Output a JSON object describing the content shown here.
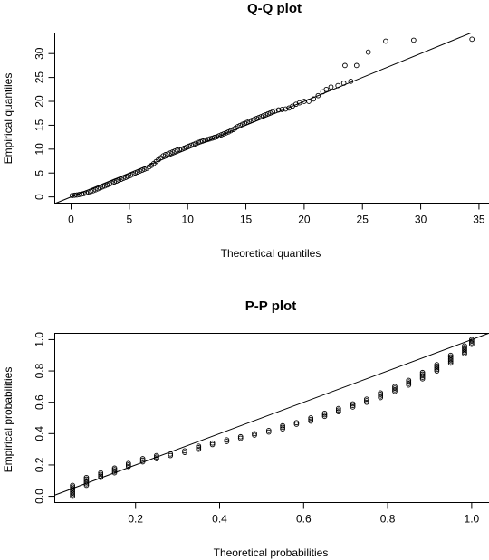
{
  "chart_data": [
    {
      "type": "scatter",
      "title": "Q-Q plot",
      "xlabel": "Theoretical quantiles",
      "ylabel": "Empirical quantiles",
      "xlim": [
        -1.4,
        35.9
      ],
      "ylim": [
        -1.3,
        34.3
      ],
      "xticks": [
        0,
        5,
        10,
        15,
        20,
        25,
        30,
        35
      ],
      "yticks": [
        0,
        5,
        10,
        15,
        20,
        25,
        30
      ],
      "reference_line": "y = x",
      "marker": "open-circle",
      "series": [
        {
          "points": [
            [
              0.1,
              0.3
            ],
            [
              0.3,
              0.35
            ],
            [
              0.5,
              0.4
            ],
            [
              0.7,
              0.5
            ],
            [
              0.9,
              0.6
            ],
            [
              1.1,
              0.7
            ],
            [
              1.3,
              0.85
            ],
            [
              1.5,
              1.0
            ],
            [
              1.7,
              1.15
            ],
            [
              1.9,
              1.3
            ],
            [
              2.1,
              1.5
            ],
            [
              2.3,
              1.7
            ],
            [
              2.5,
              1.9
            ],
            [
              2.7,
              2.1
            ],
            [
              2.9,
              2.3
            ],
            [
              3.1,
              2.5
            ],
            [
              3.3,
              2.7
            ],
            [
              3.5,
              2.9
            ],
            [
              3.7,
              3.1
            ],
            [
              3.9,
              3.3
            ],
            [
              4.1,
              3.5
            ],
            [
              4.3,
              3.7
            ],
            [
              4.5,
              3.9
            ],
            [
              4.7,
              4.1
            ],
            [
              4.9,
              4.3
            ],
            [
              5.1,
              4.5
            ],
            [
              5.3,
              4.75
            ],
            [
              5.5,
              5.0
            ],
            [
              5.7,
              5.2
            ],
            [
              5.9,
              5.4
            ],
            [
              6.1,
              5.6
            ],
            [
              6.3,
              5.8
            ],
            [
              6.5,
              6.0
            ],
            [
              6.7,
              6.3
            ],
            [
              6.9,
              6.6
            ],
            [
              7.1,
              7.0
            ],
            [
              7.3,
              7.4
            ],
            [
              7.5,
              7.8
            ],
            [
              7.7,
              8.2
            ],
            [
              7.9,
              8.6
            ],
            [
              8.1,
              8.85
            ],
            [
              8.3,
              9.0
            ],
            [
              8.5,
              9.2
            ],
            [
              8.7,
              9.4
            ],
            [
              8.9,
              9.6
            ],
            [
              9.1,
              9.8
            ],
            [
              9.3,
              9.9
            ],
            [
              9.5,
              10.0
            ],
            [
              9.7,
              10.2
            ],
            [
              9.9,
              10.4
            ],
            [
              10.1,
              10.6
            ],
            [
              10.3,
              10.8
            ],
            [
              10.5,
              11.0
            ],
            [
              10.7,
              11.2
            ],
            [
              10.9,
              11.4
            ],
            [
              11.1,
              11.55
            ],
            [
              11.3,
              11.7
            ],
            [
              11.5,
              11.85
            ],
            [
              11.7,
              12.0
            ],
            [
              11.9,
              12.15
            ],
            [
              12.1,
              12.3
            ],
            [
              12.3,
              12.45
            ],
            [
              12.5,
              12.6
            ],
            [
              12.7,
              12.8
            ],
            [
              12.9,
              13.0
            ],
            [
              13.1,
              13.2
            ],
            [
              13.3,
              13.4
            ],
            [
              13.5,
              13.6
            ],
            [
              13.7,
              13.85
            ],
            [
              13.9,
              14.1
            ],
            [
              14.1,
              14.4
            ],
            [
              14.3,
              14.7
            ],
            [
              14.5,
              14.95
            ],
            [
              14.7,
              15.2
            ],
            [
              14.9,
              15.4
            ],
            [
              15.1,
              15.6
            ],
            [
              15.3,
              15.8
            ],
            [
              15.5,
              16.0
            ],
            [
              15.7,
              16.2
            ],
            [
              15.9,
              16.4
            ],
            [
              16.1,
              16.6
            ],
            [
              16.3,
              16.8
            ],
            [
              16.5,
              17.0
            ],
            [
              16.7,
              17.2
            ],
            [
              16.9,
              17.4
            ],
            [
              17.1,
              17.6
            ],
            [
              17.3,
              17.8
            ],
            [
              17.5,
              18.0
            ],
            [
              17.8,
              18.2
            ],
            [
              18.1,
              18.3
            ],
            [
              18.4,
              18.4
            ],
            [
              18.7,
              18.6
            ],
            [
              19.0,
              19.0
            ],
            [
              19.3,
              19.4
            ],
            [
              19.6,
              19.7
            ],
            [
              20.0,
              20.0
            ],
            [
              20.4,
              20.0
            ],
            [
              20.8,
              20.5
            ],
            [
              21.2,
              21.2
            ],
            [
              21.6,
              22.0
            ],
            [
              21.9,
              22.5
            ],
            [
              22.3,
              23.0
            ],
            [
              22.9,
              23.3
            ],
            [
              23.4,
              23.8
            ],
            [
              24.0,
              24.2
            ],
            [
              23.5,
              27.5
            ],
            [
              24.5,
              27.5
            ],
            [
              25.5,
              30.3
            ],
            [
              27.0,
              32.6
            ],
            [
              29.4,
              32.8
            ],
            [
              34.4,
              33.0
            ]
          ]
        }
      ]
    },
    {
      "type": "scatter",
      "title": "P-P plot",
      "xlabel": "Theoretical probabilities",
      "ylabel": "Empirical probabilities",
      "xlim": [
        0.0077,
        1.0423
      ],
      "ylim": [
        -0.04,
        1.04
      ],
      "xticks": [
        0.2,
        0.4,
        0.6,
        0.8,
        1.0
      ],
      "yticks": [
        0.0,
        0.2,
        0.4,
        0.6,
        0.8,
        1.0
      ],
      "reference_line": "y = x",
      "marker": "open-circle",
      "series": [
        {
          "points": [
            [
              0.05,
              0.0
            ],
            [
              0.05,
              0.01
            ],
            [
              0.05,
              0.02
            ],
            [
              0.05,
              0.03
            ],
            [
              0.05,
              0.04
            ],
            [
              0.05,
              0.05
            ],
            [
              0.05,
              0.06
            ],
            [
              0.05,
              0.07
            ],
            [
              0.083,
              0.07
            ],
            [
              0.083,
              0.08
            ],
            [
              0.083,
              0.09
            ],
            [
              0.083,
              0.1
            ],
            [
              0.083,
              0.11
            ],
            [
              0.083,
              0.12
            ],
            [
              0.117,
              0.12
            ],
            [
              0.117,
              0.13
            ],
            [
              0.117,
              0.14
            ],
            [
              0.117,
              0.15
            ],
            [
              0.15,
              0.15
            ],
            [
              0.15,
              0.16
            ],
            [
              0.15,
              0.17
            ],
            [
              0.15,
              0.18
            ],
            [
              0.183,
              0.19
            ],
            [
              0.183,
              0.2
            ],
            [
              0.183,
              0.21
            ],
            [
              0.217,
              0.22
            ],
            [
              0.217,
              0.23
            ],
            [
              0.217,
              0.24
            ],
            [
              0.25,
              0.24
            ],
            [
              0.25,
              0.25
            ],
            [
              0.25,
              0.26
            ],
            [
              0.283,
              0.26
            ],
            [
              0.283,
              0.27
            ],
            [
              0.317,
              0.28
            ],
            [
              0.317,
              0.29
            ],
            [
              0.35,
              0.3
            ],
            [
              0.35,
              0.31
            ],
            [
              0.35,
              0.32
            ],
            [
              0.383,
              0.33
            ],
            [
              0.383,
              0.34
            ],
            [
              0.417,
              0.35
            ],
            [
              0.417,
              0.36
            ],
            [
              0.45,
              0.37
            ],
            [
              0.45,
              0.38
            ],
            [
              0.483,
              0.39
            ],
            [
              0.483,
              0.4
            ],
            [
              0.517,
              0.41
            ],
            [
              0.517,
              0.42
            ],
            [
              0.55,
              0.43
            ],
            [
              0.55,
              0.44
            ],
            [
              0.55,
              0.45
            ],
            [
              0.583,
              0.46
            ],
            [
              0.583,
              0.47
            ],
            [
              0.617,
              0.48
            ],
            [
              0.617,
              0.49
            ],
            [
              0.617,
              0.5
            ],
            [
              0.65,
              0.51
            ],
            [
              0.65,
              0.52
            ],
            [
              0.65,
              0.53
            ],
            [
              0.683,
              0.54
            ],
            [
              0.683,
              0.55
            ],
            [
              0.683,
              0.56
            ],
            [
              0.717,
              0.57
            ],
            [
              0.717,
              0.58
            ],
            [
              0.717,
              0.59
            ],
            [
              0.75,
              0.6
            ],
            [
              0.75,
              0.61
            ],
            [
              0.75,
              0.62
            ],
            [
              0.783,
              0.63
            ],
            [
              0.783,
              0.64
            ],
            [
              0.783,
              0.65
            ],
            [
              0.783,
              0.66
            ],
            [
              0.817,
              0.67
            ],
            [
              0.817,
              0.68
            ],
            [
              0.817,
              0.69
            ],
            [
              0.817,
              0.7
            ],
            [
              0.85,
              0.71
            ],
            [
              0.85,
              0.72
            ],
            [
              0.85,
              0.73
            ],
            [
              0.85,
              0.74
            ],
            [
              0.883,
              0.75
            ],
            [
              0.883,
              0.76
            ],
            [
              0.883,
              0.77
            ],
            [
              0.883,
              0.78
            ],
            [
              0.883,
              0.79
            ],
            [
              0.917,
              0.8
            ],
            [
              0.917,
              0.81
            ],
            [
              0.917,
              0.82
            ],
            [
              0.917,
              0.83
            ],
            [
              0.917,
              0.84
            ],
            [
              0.95,
              0.85
            ],
            [
              0.95,
              0.86
            ],
            [
              0.95,
              0.87
            ],
            [
              0.95,
              0.88
            ],
            [
              0.95,
              0.89
            ],
            [
              0.95,
              0.9
            ],
            [
              0.983,
              0.91
            ],
            [
              0.983,
              0.92
            ],
            [
              0.983,
              0.93
            ],
            [
              0.983,
              0.94
            ],
            [
              0.983,
              0.95
            ],
            [
              0.983,
              0.96
            ],
            [
              1.0,
              0.97
            ],
            [
              1.0,
              0.98
            ],
            [
              1.0,
              0.99
            ],
            [
              1.0,
              1.0
            ]
          ]
        }
      ]
    }
  ]
}
